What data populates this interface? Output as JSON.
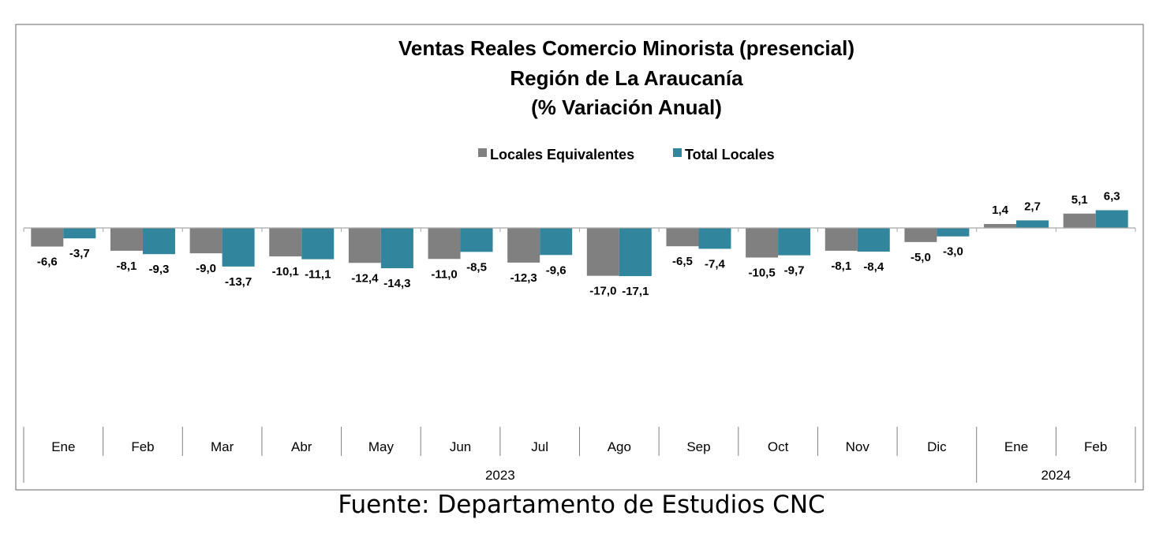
{
  "colors": {
    "locales_equivalentes": "#808080",
    "total_locales": "#31859C",
    "frame": "#7f7f7f",
    "axis": "#a6a6a6"
  },
  "source_note": "Fuente: Departamento de Estudios CNC",
  "chart_data": {
    "type": "bar",
    "title": [
      "Ventas Reales Comercio Minorista (presencial)",
      "Región de La Araucanía",
      "(% Variación Anual)"
    ],
    "xlabel": "",
    "ylabel": "",
    "legend_position": "top",
    "grid": false,
    "ylim": [
      -28,
      8
    ],
    "categories": [
      "Ene",
      "Feb",
      "Mar",
      "Abr",
      "May",
      "Jun",
      "Jul",
      "Ago",
      "Sep",
      "Oct",
      "Nov",
      "Dic",
      "Ene",
      "Feb"
    ],
    "groups": [
      {
        "label": "2023",
        "count": 12
      },
      {
        "label": "2024",
        "count": 2
      }
    ],
    "series": [
      {
        "name": "Locales Equivalentes",
        "values": [
          -6.6,
          -8.1,
          -9.0,
          -10.1,
          -12.4,
          -11.0,
          -12.3,
          -17.0,
          -6.5,
          -10.5,
          -8.1,
          -5.0,
          1.4,
          5.1
        ],
        "labels": [
          "-6,6",
          "-8,1",
          "-9,0",
          "-10,1",
          "-12,4",
          "-11,0",
          "-12,3",
          "-17,0",
          "-6,5",
          "-10,5",
          "-8,1",
          "-5,0",
          "1,4",
          "5,1"
        ]
      },
      {
        "name": "Total Locales",
        "values": [
          -3.7,
          -9.3,
          -13.7,
          -11.1,
          -14.3,
          -8.5,
          -9.6,
          -17.1,
          -7.4,
          -9.7,
          -8.4,
          -3.0,
          2.7,
          6.3
        ],
        "labels": [
          "-3,7",
          "-9,3",
          "-13,7",
          "-11,1",
          "-14,3",
          "-8,5",
          "-9,6",
          "-17,1",
          "-7,4",
          "-9,7",
          "-8,4",
          "-3,0",
          "2,7",
          "6,3"
        ]
      }
    ]
  }
}
